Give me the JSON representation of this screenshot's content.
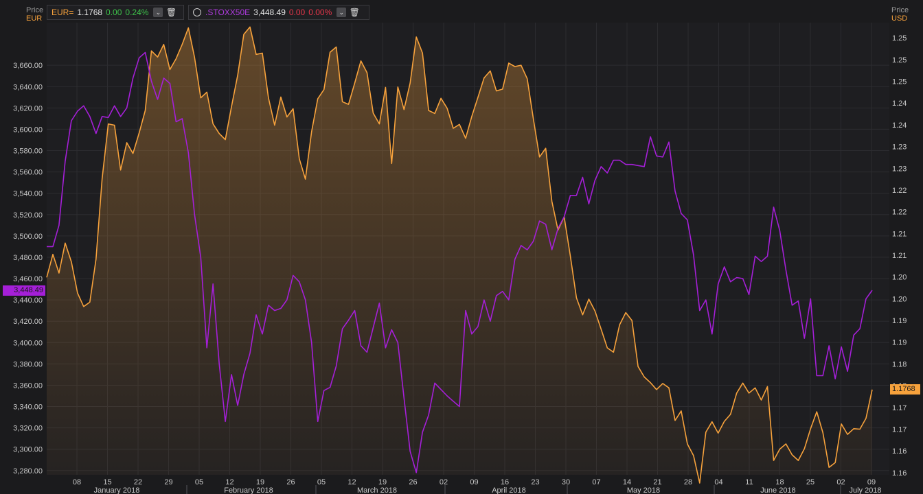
{
  "legend": {
    "eur": {
      "symbol": "EUR=",
      "last": "1.1768",
      "change": "0.00",
      "pct": "0.24%"
    },
    "stoxx": {
      "symbol": ".STOXX50E",
      "last": "3,448.49",
      "change": "0.00",
      "pct": "0.00%"
    }
  },
  "left_axis": {
    "title": "Price",
    "currency": "EUR",
    "current_tag": "3,448.49"
  },
  "right_axis": {
    "title": "Price",
    "currency": "USD",
    "current_tag": "1.1768"
  },
  "colors": {
    "eur": "#f7a23c",
    "stoxx": "#a51fd8",
    "up": "#3ec24a",
    "down": "#e8364a"
  },
  "icons": [
    "clock-icon",
    "chevron-down-icon",
    "trash-icon"
  ],
  "chart_data": {
    "type": "line",
    "x_day_labels": [
      "08",
      "15",
      "22",
      "29",
      "05",
      "12",
      "19",
      "26",
      "05",
      "12",
      "19",
      "26",
      "02",
      "09",
      "16",
      "23",
      "30",
      "07",
      "14",
      "21",
      "28",
      "04",
      "11",
      "18",
      "25",
      "02",
      "09"
    ],
    "x_month_labels": [
      "January 2018",
      "February 2018",
      "March 2018",
      "April 2018",
      "May 2018",
      "June 2018",
      "July 2018"
    ],
    "left_axis": {
      "ylim": [
        3276,
        3700
      ],
      "ticks": [
        3280,
        3300,
        3320,
        3340,
        3360,
        3380,
        3400,
        3420,
        3440,
        3460,
        3480,
        3500,
        3520,
        3540,
        3560,
        3580,
        3600,
        3620,
        3640,
        3660
      ],
      "tick_labels": [
        "3,280.00",
        "3,300.00",
        "3,320.00",
        "3,340.00",
        "3,360.00",
        "3,380.00",
        "3,400.00",
        "3,420.00",
        "3,440.00",
        "3,460.00",
        "3,480.00",
        "3,500.00",
        "3,520.00",
        "3,540.00",
        "3,560.00",
        "3,580.00",
        "3,600.00",
        "3,620.00",
        "3,640.00",
        "3,660.00"
      ]
    },
    "right_axis": {
      "ylim": [
        1.1545,
        1.2585
      ],
      "ticks": [
        1.155,
        1.16,
        1.165,
        1.17,
        1.175,
        1.18,
        1.185,
        1.19,
        1.195,
        1.2,
        1.205,
        1.21,
        1.215,
        1.22,
        1.225,
        1.23,
        1.235,
        1.24,
        1.245,
        1.25,
        1.255
      ],
      "tick_labels": [
        "1.16",
        "1.16",
        "1.17",
        "1.17",
        "1.18",
        "1.18",
        "1.19",
        "1.19",
        "1.20",
        "1.20",
        "1.21",
        "1.21",
        "1.22",
        "1.22",
        "1.23",
        "1.23",
        "1.24",
        "1.24",
        "1.25",
        "1.25",
        "1.25"
      ]
    },
    "series": [
      {
        "name": ".STOXX50E",
        "axis": "left",
        "values": [
          3490,
          3490,
          3510,
          3570,
          3608,
          3617,
          3622,
          3612,
          3596,
          3612,
          3611,
          3622,
          3612,
          3620,
          3648,
          3667,
          3672,
          3645,
          3628,
          3648,
          3643,
          3607,
          3610,
          3578,
          3520,
          3480,
          3395,
          3455,
          3380,
          3326,
          3370,
          3341,
          3370,
          3390,
          3426,
          3408,
          3435,
          3430,
          3432,
          3440,
          3463,
          3457,
          3440,
          3400,
          3326,
          3355,
          3358,
          3378,
          3413,
          3421,
          3430,
          3397,
          3391,
          3414,
          3437,
          3395,
          3412,
          3400,
          3348,
          3298,
          3278,
          3316,
          3332,
          3362,
          3356,
          3350,
          3345,
          3340,
          3430,
          3408,
          3415,
          3440,
          3420,
          3444,
          3448,
          3440,
          3478,
          3491,
          3487,
          3495,
          3514,
          3511,
          3487,
          3507,
          3518,
          3538,
          3538,
          3555,
          3530,
          3552,
          3565,
          3559,
          3571,
          3571,
          3567,
          3567,
          3566,
          3565,
          3593,
          3575,
          3574,
          3588,
          3542,
          3521,
          3515,
          3482,
          3430,
          3440,
          3408,
          3455,
          3471,
          3457,
          3461,
          3460,
          3445,
          3481,
          3476,
          3481,
          3527,
          3505,
          3468,
          3435,
          3439,
          3404,
          3441,
          3369,
          3369,
          3397,
          3366,
          3396,
          3373,
          3407,
          3413,
          3441,
          3449
        ]
      },
      {
        "name": "EUR=",
        "axis": "right",
        "values": [
          1.1999,
          1.2052,
          1.2009,
          1.2078,
          1.2035,
          1.1963,
          1.1932,
          1.1942,
          1.2041,
          1.2226,
          1.2352,
          1.2349,
          1.2246,
          1.2309,
          1.2284,
          1.2331,
          1.2383,
          1.252,
          1.2506,
          1.2535,
          1.2477,
          1.2502,
          1.2535,
          1.2573,
          1.2505,
          1.2412,
          1.2425,
          1.2352,
          1.233,
          1.2316,
          1.2392,
          1.2464,
          1.2558,
          1.2575,
          1.2512,
          1.2515,
          1.2412,
          1.2349,
          1.2414,
          1.2368,
          1.2387,
          1.2272,
          1.2225,
          1.2334,
          1.241,
          1.2431,
          1.2517,
          1.2529,
          1.2403,
          1.2397,
          1.2446,
          1.2497,
          1.247,
          1.2377,
          1.2352,
          1.2436,
          1.2261,
          1.2437,
          1.2385,
          1.2446,
          1.2552,
          1.2515,
          1.2383,
          1.2376,
          1.2411,
          1.2388,
          1.2342,
          1.2351,
          1.2319,
          1.2369,
          1.2413,
          1.2458,
          1.2474,
          1.2428,
          1.2432,
          1.2492,
          1.2484,
          1.2487,
          1.2456,
          1.2364,
          1.2276,
          1.2296,
          1.2174,
          1.2108,
          1.2138,
          1.2048,
          1.1952,
          1.1913,
          1.1949,
          1.1922,
          1.188,
          1.1837,
          1.1827,
          1.189,
          1.1918,
          1.19,
          1.1794,
          1.177,
          1.1757,
          1.1741,
          1.1755,
          1.1745,
          1.167,
          1.1692,
          1.1616,
          1.1589,
          1.1526,
          1.1643,
          1.1667,
          1.1641,
          1.1668,
          1.1684,
          1.1733,
          1.1756,
          1.1733,
          1.1745,
          1.1717,
          1.1748,
          1.1578,
          1.1604,
          1.1616,
          1.1591,
          1.1578,
          1.1605,
          1.1651,
          1.169,
          1.1642,
          1.1562,
          1.1573,
          1.1662,
          1.1638,
          1.1651,
          1.165,
          1.1675,
          1.1741,
          1.1768
        ]
      }
    ],
    "grid": true,
    "legend": "top-left"
  }
}
